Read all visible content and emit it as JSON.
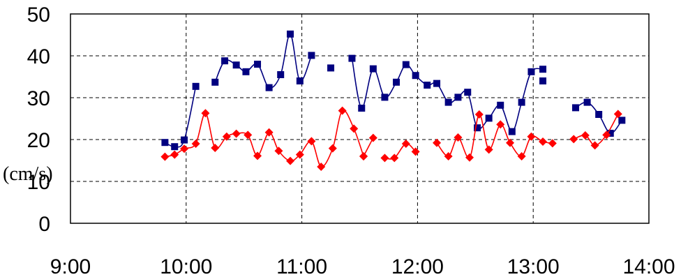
{
  "chart_data": {
    "type": "line",
    "xlabel": "",
    "ylabel": "(cm/s)",
    "xlim": [
      "9:00",
      "14:00"
    ],
    "ylim": [
      0,
      50
    ],
    "x_ticks": [
      "9:00",
      "10:00",
      "11:00",
      "12:00",
      "13:00",
      "14:00"
    ],
    "y_ticks": [
      "0",
      "10",
      "20",
      "30",
      "40",
      "50"
    ],
    "grid": true,
    "series": [
      {
        "color": "#000080",
        "marker": "square",
        "segments": [
          {
            "x": [
              "9:49",
              "9:54",
              "9:59",
              "10:05"
            ],
            "y": [
              19.3,
              18.3,
              19.9,
              32.7
            ]
          },
          {
            "x": [
              "10:15",
              "10:20",
              "10:26",
              "10:31",
              "10:37",
              "10:43",
              "10:49",
              "10:54",
              "10:59",
              "11:05"
            ],
            "y": [
              33.7,
              38.8,
              37.8,
              36.2,
              38.0,
              32.4,
              35.5,
              45.2,
              34.0,
              40.1
            ]
          },
          {
            "x": [
              "11:15"
            ],
            "y": [
              37.1
            ]
          },
          {
            "x": [
              "11:26",
              "11:31",
              "11:37",
              "11:43",
              "11:49",
              "11:54",
              "11:59",
              "12:05",
              "12:10",
              "12:16",
              "12:21",
              "12:26",
              "12:31",
              "12:37",
              "12:43",
              "12:49",
              "12:54",
              "12:59",
              "13:05"
            ],
            "y": [
              39.4,
              27.5,
              36.9,
              30.1,
              33.7,
              37.9,
              35.3,
              33.0,
              33.4,
              28.9,
              30.1,
              31.3,
              22.8,
              25.1,
              28.2,
              21.9,
              28.9,
              36.2,
              36.8
            ]
          },
          {
            "x": [
              "13:05"
            ],
            "y": [
              34.0
            ]
          },
          {
            "x": [
              "13:22",
              "13:28",
              "13:34",
              "13:40",
              "13:46"
            ],
            "y": [
              27.6,
              28.9,
              26.0,
              21.5,
              24.6
            ]
          }
        ]
      },
      {
        "color": "#ff0000",
        "marker": "diamond",
        "segments": [
          {
            "x": [
              "9:49",
              "9:54",
              "9:59",
              "10:05",
              "10:10",
              "10:15",
              "10:21",
              "10:26",
              "10:32",
              "10:37",
              "10:43",
              "10:48",
              "10:54",
              "10:59",
              "11:05",
              "11:10",
              "11:16",
              "11:21",
              "11:27",
              "11:32"
            ],
            "y": [
              15.9,
              16.4,
              17.8,
              19.0,
              26.3,
              18.0,
              20.7,
              21.4,
              21.1,
              16.1,
              21.7,
              17.3,
              14.9,
              16.4,
              19.6,
              13.5,
              17.9,
              26.9,
              22.6,
              16.0
            ]
          },
          {
            "x": [
              "11:32",
              "11:37"
            ],
            "y": [
              16.0,
              20.4
            ]
          },
          {
            "x": [
              "11:43",
              "11:48",
              "11:54",
              "11:59"
            ],
            "y": [
              15.6,
              15.6,
              19.0,
              17.1
            ]
          },
          {
            "x": [
              "12:10",
              "12:16",
              "12:21",
              "12:27",
              "12:32",
              "12:37",
              "12:43",
              "12:48",
              "12:54",
              "12:59",
              "13:05",
              "13:10"
            ],
            "y": [
              19.2,
              16.0,
              20.5,
              15.7,
              26.0,
              17.6,
              23.6,
              19.2,
              16.0,
              20.7,
              19.5,
              19.1
            ]
          },
          {
            "x": [
              "13:21",
              "13:27",
              "13:32",
              "13:38",
              "13:44"
            ],
            "y": [
              20.1,
              21.0,
              18.6,
              21.1,
              26.1
            ]
          }
        ]
      }
    ]
  }
}
